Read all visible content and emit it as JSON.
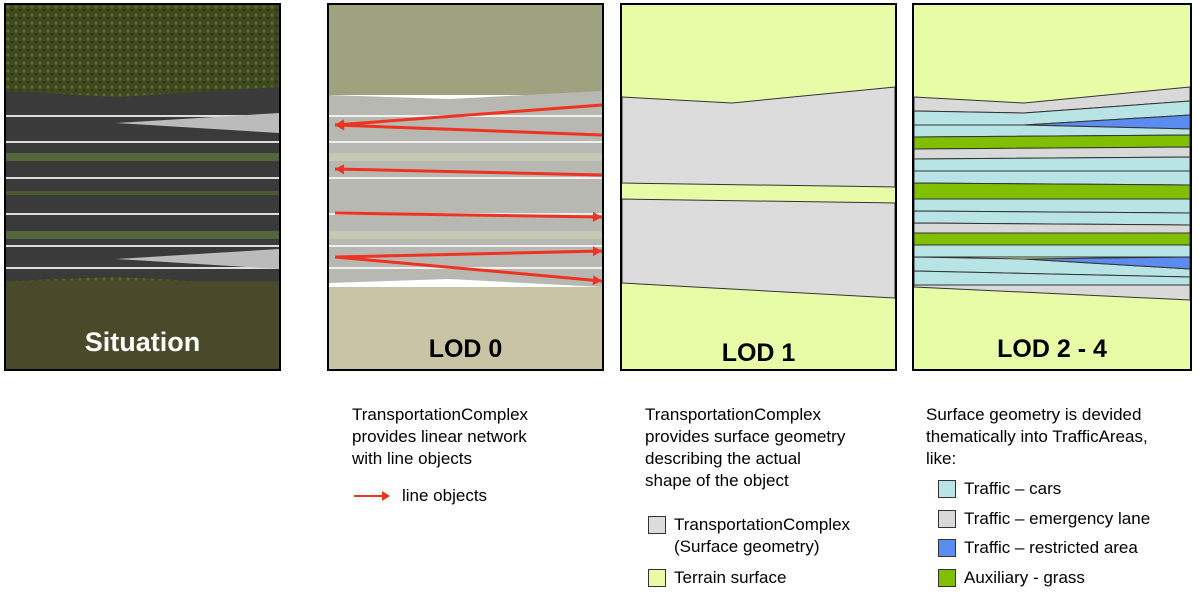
{
  "panels": {
    "situation": {
      "title": "Situation"
    },
    "lod0": {
      "title": "LOD 0"
    },
    "lod1": {
      "title": "LOD 1"
    },
    "lod24": {
      "title": "LOD 2 - 4"
    }
  },
  "descriptions": {
    "lod0": [
      "TransportationComplex",
      "provides linear network",
      "with line objects"
    ],
    "lod1": [
      "TransportationComplex",
      "provides surface geometry",
      "describing the actual",
      "shape of the object"
    ],
    "lod24": [
      "Surface geometry is devided",
      "thematically into TrafficAreas,",
      "like:"
    ]
  },
  "legend_lod0": [
    {
      "label": "line objects",
      "color": "#ee3322",
      "icon": "red-arrow-icon"
    }
  ],
  "legend_lod1": [
    {
      "label": "TransportationComplex",
      "label2": "(Surface geometry)",
      "color": "#dcdcdc"
    },
    {
      "label": "Terrain surface",
      "color": "#e8fca8"
    }
  ],
  "legend_lod24": [
    {
      "label": "Traffic – cars",
      "color": "#b9e4e6"
    },
    {
      "label": "Traffic – emergency lane",
      "color": "#d9d9d9"
    },
    {
      "label": "Traffic – restricted area",
      "color": "#5b8cf0"
    },
    {
      "label": "Auxiliary - grass",
      "color": "#7fbf00"
    }
  ],
  "colors": {
    "terrain": "#e8fca8",
    "complex": "#dcdcdc",
    "cars": "#b9e4e6",
    "emergency": "#d9d9d9",
    "restricted": "#5b8cf0",
    "grass": "#7fbf00",
    "line_objects": "#ee3322"
  }
}
